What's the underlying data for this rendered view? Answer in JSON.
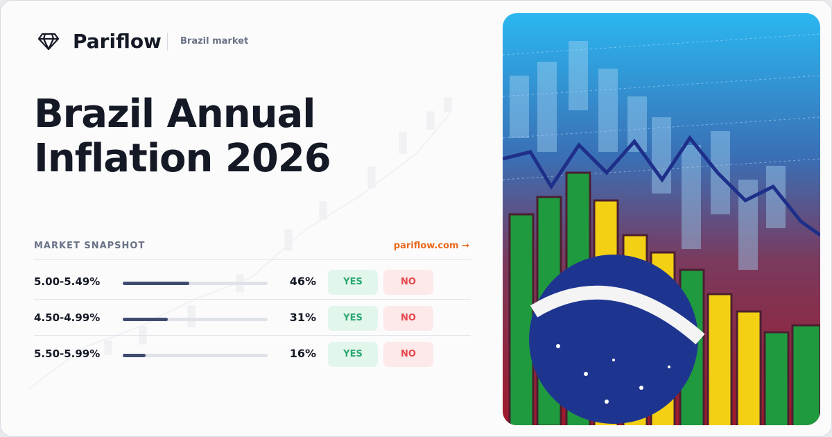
{
  "header": {
    "brand": "Pariflow",
    "tag": "Brazil market"
  },
  "title": "Brazil Annual Inflation 2026",
  "snapshot": {
    "label": "MARKET SNAPSHOT",
    "link": "pariflow.com →",
    "rows": [
      {
        "outcome": "5.00-5.49%",
        "value": 46,
        "value_label": "46%",
        "yes": "YES",
        "no": "NO"
      },
      {
        "outcome": "4.50-4.99%",
        "value": 31,
        "value_label": "31%",
        "yes": "YES",
        "no": "NO"
      },
      {
        "outcome": "5.50-5.99%",
        "value": 16,
        "value_label": "16%",
        "yes": "YES",
        "no": "NO"
      }
    ]
  }
}
